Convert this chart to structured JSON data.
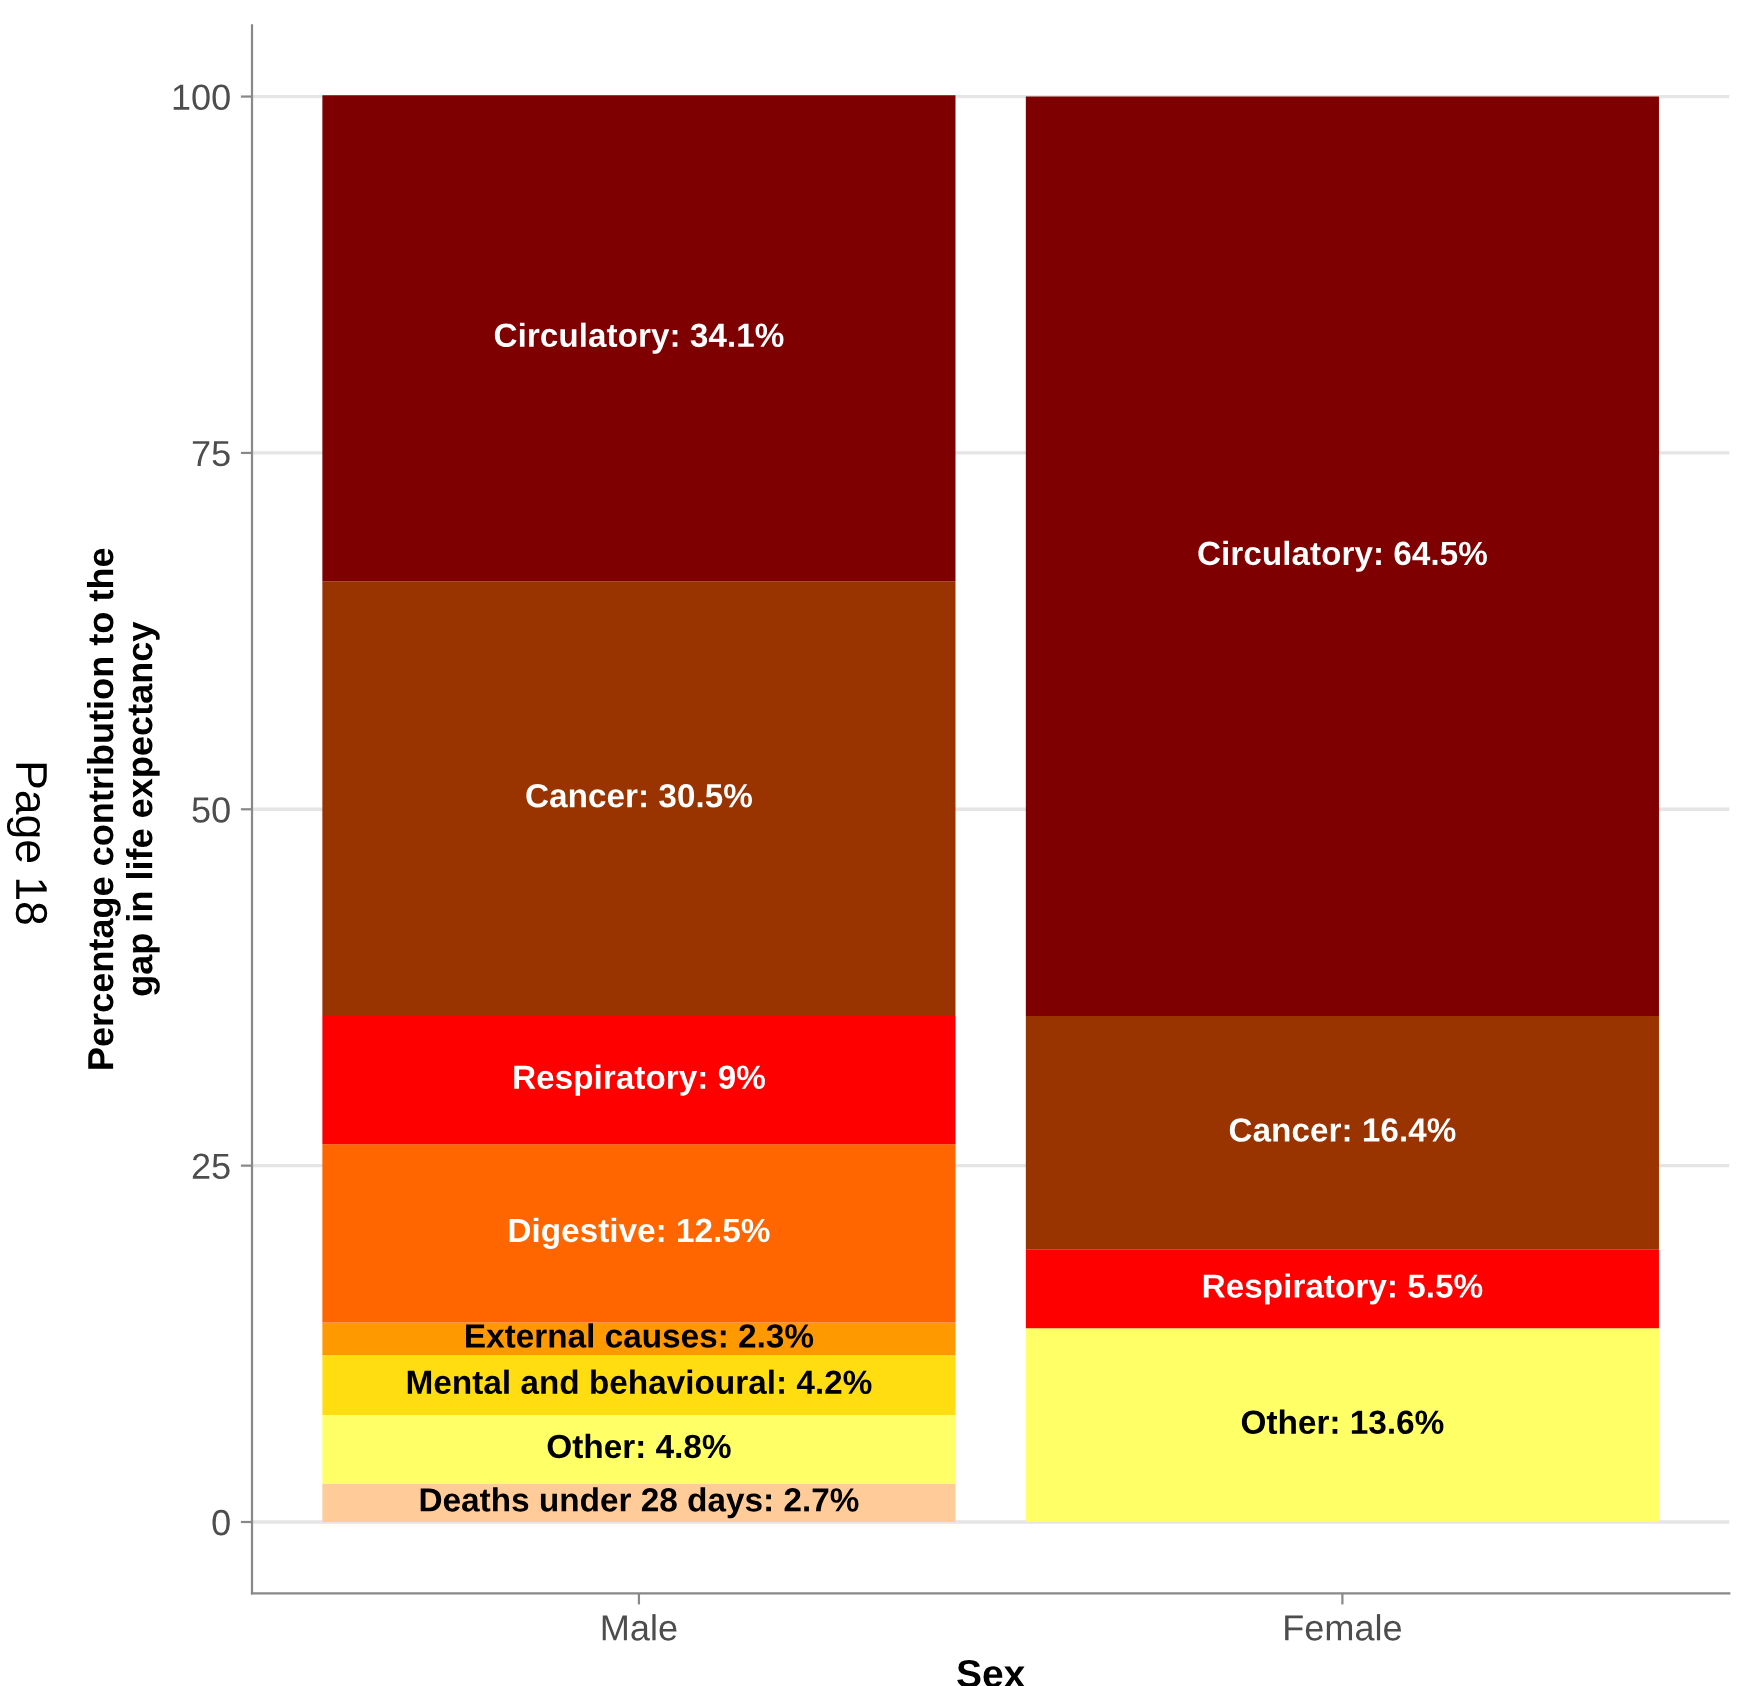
{
  "chart_data": {
    "type": "bar",
    "stacked": true,
    "categories": [
      "Male",
      "Female"
    ],
    "xlabel": "Sex",
    "ylabel": "Percentage contribution to the\ngap in life expectancy",
    "ylim": [
      -5,
      105
    ],
    "yticks": [
      0,
      25,
      50,
      75,
      100
    ],
    "grid": "y",
    "legend": false,
    "annotations": [
      "Page 18"
    ],
    "series": [
      {
        "color": "#ffcc99",
        "values": [
          2.7,
          null
        ],
        "value_labels": [
          "Deaths under 28 days: 2.7%",
          null
        ]
      },
      {
        "color": "#ffff66",
        "values": [
          4.8,
          13.6
        ],
        "value_labels": [
          "Other: 4.8%",
          "Other: 13.6%"
        ]
      },
      {
        "color": "#ffdd11",
        "values": [
          4.2,
          null
        ],
        "value_labels": [
          "Mental and behavioural: 4.2%",
          null
        ]
      },
      {
        "color": "#ff9900",
        "values": [
          2.3,
          null
        ],
        "value_labels": [
          "External causes: 2.3%",
          null
        ]
      },
      {
        "color": "#ff6600",
        "values": [
          12.5,
          null
        ],
        "value_labels": [
          "Digestive: 12.5%",
          null
        ]
      },
      {
        "color": "#ff0000",
        "values": [
          9,
          5.5
        ],
        "value_labels": [
          "Respiratory: 9%",
          "Respiratory: 5.5%"
        ]
      },
      {
        "color": "#993300",
        "values": [
          30.5,
          16.4
        ],
        "value_labels": [
          "Cancer: 30.5%",
          "Cancer: 16.4%"
        ]
      },
      {
        "color": "#7f0000",
        "values": [
          34.1,
          64.5
        ],
        "value_labels": [
          "Circulatory: 34.1%",
          "Circulatory: 64.5%"
        ]
      }
    ]
  }
}
